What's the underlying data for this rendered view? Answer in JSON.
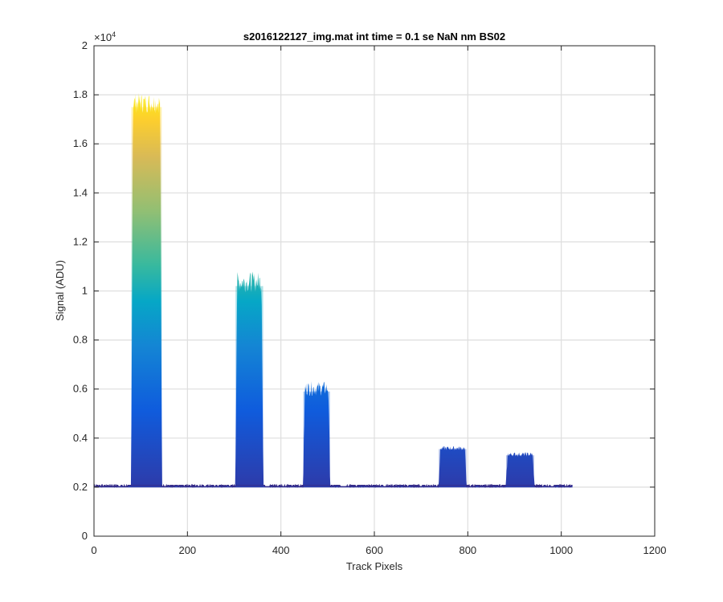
{
  "chart_data": {
    "type": "area",
    "title": "s2016122127_img.mat int time = 0.1 se  NaN nm BS02",
    "xlabel": "Track Pixels",
    "ylabel": "Signal (ADU)",
    "y_exponent_label": "×10",
    "y_exponent_power": "4",
    "xlim": [
      0,
      1200
    ],
    "ylim": [
      0,
      20000
    ],
    "x_ticks": [
      "0",
      "200",
      "400",
      "600",
      "800",
      "1000",
      "1200"
    ],
    "x_tick_values": [
      0,
      200,
      400,
      600,
      800,
      1000,
      1200
    ],
    "y_ticks": [
      "0",
      "0.2",
      "0.4",
      "0.6",
      "0.8",
      "1",
      "1.2",
      "1.4",
      "1.6",
      "1.8",
      "2"
    ],
    "y_tick_values": [
      0,
      2000,
      4000,
      6000,
      8000,
      10000,
      12000,
      14000,
      16000,
      18000,
      20000
    ],
    "grid": true,
    "colormap": "parula",
    "colors": {
      "low": "#352a87",
      "mid": "#0f9ed5",
      "high": "#f9fb0e"
    },
    "baseline": 2050,
    "x_max_data": 1024,
    "peaks": [
      {
        "x_start": 80,
        "x_end": 145,
        "plateau": 17500,
        "max": 18200
      },
      {
        "x_start": 303,
        "x_end": 362,
        "plateau": 10200,
        "max": 10900
      },
      {
        "x_start": 448,
        "x_end": 505,
        "plateau": 5900,
        "max": 6400
      },
      {
        "x_start": 738,
        "x_end": 797,
        "plateau": 3550,
        "max": 3700
      },
      {
        "x_start": 882,
        "x_end": 942,
        "plateau": 3300,
        "max": 3450
      }
    ]
  }
}
